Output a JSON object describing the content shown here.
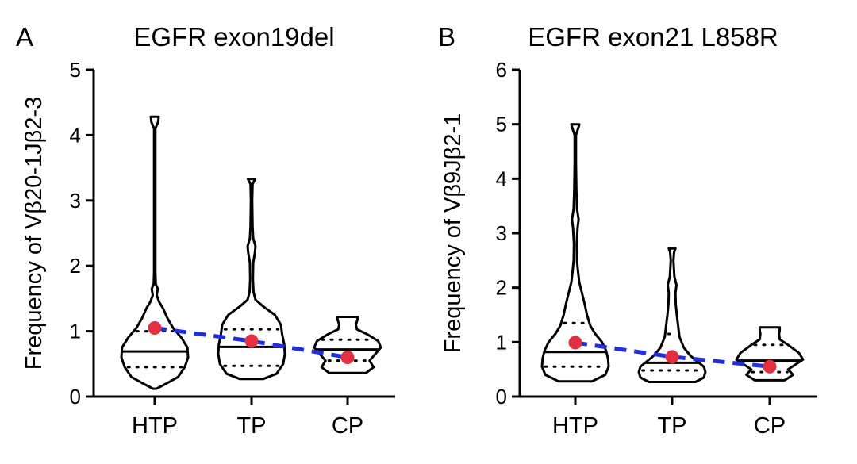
{
  "chart_data": [
    {
      "type": "violin",
      "panel_letter": "A",
      "title": "EGFR exon19del",
      "ylabel": "Frequency of Vβ20-1Jβ2-3",
      "ylim": [
        0,
        5
      ],
      "yticks": [
        0,
        1,
        2,
        3,
        4,
        5
      ],
      "categories": [
        "HTP",
        "TP",
        "CP"
      ],
      "groups": [
        {
          "category": "HTP",
          "min": 0.12,
          "max": 4.28,
          "median": 0.69,
          "q1": 0.45,
          "q3": 1.0,
          "mean": 1.05,
          "density": [
            [
              0.12,
              0.05
            ],
            [
              0.2,
              0.35
            ],
            [
              0.3,
              0.7
            ],
            [
              0.45,
              0.9
            ],
            [
              0.6,
              1.0
            ],
            [
              0.75,
              0.98
            ],
            [
              0.9,
              0.8
            ],
            [
              1.05,
              0.55
            ],
            [
              1.2,
              0.38
            ],
            [
              1.35,
              0.25
            ],
            [
              1.45,
              0.13
            ],
            [
              1.55,
              0.06
            ],
            [
              1.65,
              0.09
            ],
            [
              1.72,
              0.03
            ],
            [
              1.9,
              0.02
            ],
            [
              2.5,
              0.02
            ],
            [
              3.5,
              0.02
            ],
            [
              4.1,
              0.02
            ],
            [
              4.2,
              0.1
            ],
            [
              4.28,
              0.12
            ]
          ]
        },
        {
          "category": "TP",
          "min": 0.27,
          "max": 3.33,
          "median": 0.76,
          "q1": 0.47,
          "q3": 1.03,
          "mean": 0.85,
          "density": [
            [
              0.27,
              0.35
            ],
            [
              0.35,
              0.75
            ],
            [
              0.5,
              0.95
            ],
            [
              0.65,
              1.0
            ],
            [
              0.8,
              0.98
            ],
            [
              0.95,
              0.92
            ],
            [
              1.1,
              0.88
            ],
            [
              1.25,
              0.7
            ],
            [
              1.38,
              0.35
            ],
            [
              1.48,
              0.12
            ],
            [
              1.6,
              0.06
            ],
            [
              1.8,
              0.04
            ],
            [
              2.05,
              0.05
            ],
            [
              2.2,
              0.1
            ],
            [
              2.3,
              0.12
            ],
            [
              2.42,
              0.05
            ],
            [
              2.6,
              0.03
            ],
            [
              3.0,
              0.02
            ],
            [
              3.25,
              0.03
            ],
            [
              3.33,
              0.11
            ]
          ]
        },
        {
          "category": "CP",
          "min": 0.36,
          "max": 1.22,
          "median": 0.72,
          "q1": 0.55,
          "q3": 0.87,
          "mean": 0.6,
          "density": [
            [
              0.36,
              0.55
            ],
            [
              0.45,
              0.78
            ],
            [
              0.55,
              0.66
            ],
            [
              0.65,
              0.83
            ],
            [
              0.75,
              1.0
            ],
            [
              0.85,
              0.92
            ],
            [
              0.95,
              0.6
            ],
            [
              1.03,
              0.28
            ],
            [
              1.1,
              0.25
            ],
            [
              1.18,
              0.3
            ],
            [
              1.22,
              0.3
            ]
          ]
        }
      ]
    },
    {
      "type": "violin",
      "panel_letter": "B",
      "title": "EGFR exon21 L858R",
      "ylabel": "Frequency of Vβ9Jβ2-1",
      "ylim": [
        0,
        6
      ],
      "yticks": [
        0,
        1,
        2,
        3,
        4,
        5,
        6
      ],
      "categories": [
        "HTP",
        "TP",
        "CP"
      ],
      "groups": [
        {
          "category": "HTP",
          "min": 0.28,
          "max": 5.0,
          "median": 0.82,
          "q1": 0.55,
          "q3": 1.35,
          "mean": 0.99,
          "density": [
            [
              0.28,
              0.5
            ],
            [
              0.4,
              0.9
            ],
            [
              0.55,
              1.0
            ],
            [
              0.7,
              0.98
            ],
            [
              0.85,
              0.92
            ],
            [
              1.0,
              0.8
            ],
            [
              1.15,
              0.6
            ],
            [
              1.3,
              0.45
            ],
            [
              1.5,
              0.35
            ],
            [
              1.7,
              0.28
            ],
            [
              1.9,
              0.2
            ],
            [
              2.1,
              0.12
            ],
            [
              2.3,
              0.08
            ],
            [
              2.5,
              0.05
            ],
            [
              2.8,
              0.04
            ],
            [
              3.1,
              0.07
            ],
            [
              3.25,
              0.1
            ],
            [
              3.45,
              0.05
            ],
            [
              3.8,
              0.03
            ],
            [
              4.3,
              0.02
            ],
            [
              4.8,
              0.02
            ],
            [
              4.95,
              0.1
            ],
            [
              5.0,
              0.12
            ]
          ]
        },
        {
          "category": "TP",
          "min": 0.27,
          "max": 2.72,
          "median": 0.62,
          "q1": 0.48,
          "q3": 1.15,
          "mean": 0.73,
          "density": [
            [
              0.27,
              0.7
            ],
            [
              0.35,
              0.95
            ],
            [
              0.45,
              1.0
            ],
            [
              0.55,
              0.95
            ],
            [
              0.65,
              0.75
            ],
            [
              0.75,
              0.55
            ],
            [
              0.9,
              0.35
            ],
            [
              1.1,
              0.22
            ],
            [
              1.3,
              0.18
            ],
            [
              1.5,
              0.14
            ],
            [
              1.7,
              0.11
            ],
            [
              1.9,
              0.1
            ],
            [
              2.05,
              0.13
            ],
            [
              2.2,
              0.07
            ],
            [
              2.5,
              0.04
            ],
            [
              2.65,
              0.06
            ],
            [
              2.72,
              0.1
            ]
          ]
        },
        {
          "category": "CP",
          "min": 0.3,
          "max": 1.27,
          "median": 0.66,
          "q1": 0.45,
          "q3": 0.95,
          "mean": 0.55,
          "density": [
            [
              0.3,
              0.45
            ],
            [
              0.4,
              0.7
            ],
            [
              0.5,
              0.55
            ],
            [
              0.58,
              0.75
            ],
            [
              0.68,
              1.0
            ],
            [
              0.8,
              0.88
            ],
            [
              0.95,
              0.55
            ],
            [
              1.05,
              0.3
            ],
            [
              1.15,
              0.28
            ],
            [
              1.22,
              0.3
            ],
            [
              1.27,
              0.3
            ]
          ]
        }
      ]
    }
  ]
}
